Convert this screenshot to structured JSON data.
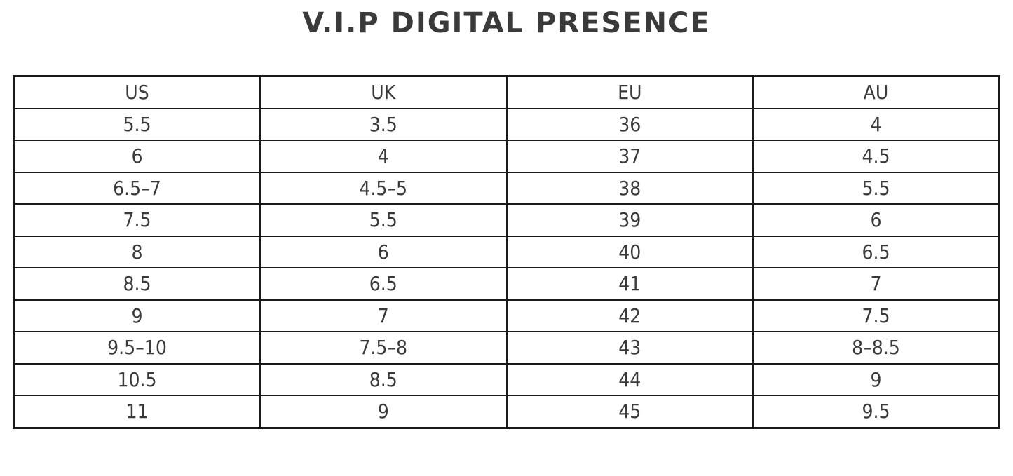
{
  "title": "V.I.P DIGITAL PRESENCE",
  "colors": {
    "background": "#ffffff",
    "border": "#1a1a1a",
    "text": "#3a3a3a"
  },
  "table": {
    "headers": [
      "US",
      "UK",
      "EU",
      "AU"
    ],
    "rows": [
      [
        "5.5",
        "3.5",
        "36",
        "4"
      ],
      [
        "6",
        "4",
        "37",
        "4.5"
      ],
      [
        "6.5–7",
        "4.5–5",
        "38",
        "5.5"
      ],
      [
        "7.5",
        "5.5",
        "39",
        "6"
      ],
      [
        "8",
        "6",
        "40",
        "6.5"
      ],
      [
        "8.5",
        "6.5",
        "41",
        "7"
      ],
      [
        "9",
        "7",
        "42",
        "7.5"
      ],
      [
        "9.5–10",
        "7.5–8",
        "43",
        "8–8.5"
      ],
      [
        "10.5",
        "8.5",
        "44",
        "9"
      ],
      [
        "11",
        "9",
        "45",
        "9.5"
      ]
    ]
  }
}
